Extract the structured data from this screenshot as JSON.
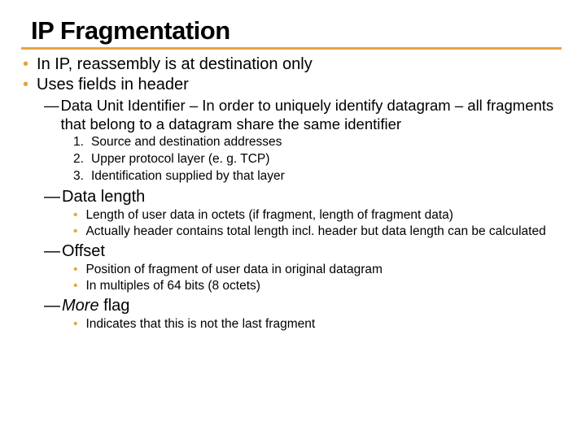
{
  "colors": {
    "accent": "#e8a33d",
    "text": "#000000",
    "bg": "#ffffff"
  },
  "title": "IP Fragmentation",
  "bullets": {
    "b1": "In IP, reassembly is at destination only",
    "b2": "Uses fields in header"
  },
  "sections": {
    "data_unit_id": {
      "label": "Data Unit Identifier – In order to uniquely identify datagram – all fragments that belong to a datagram share the same identifier",
      "items": {
        "n1": "Source and destination addresses",
        "n2": "Upper protocol layer (e. g. TCP)",
        "n3": "Identification supplied by that layer"
      }
    },
    "data_length": {
      "label": "Data length",
      "items": {
        "s1": "Length of user data in octets (if fragment, length of fragment data)",
        "s2": "Actually header contains total length incl. header but data length can be calculated"
      }
    },
    "offset": {
      "label": "Offset",
      "items": {
        "s1": "Position of fragment of user data in original datagram",
        "s2": "In multiples of 64 bits (8 octets)"
      }
    },
    "more_flag": {
      "label_italic": "More",
      "label_rest": " flag",
      "items": {
        "s1": "Indicates that this is not the last fragment"
      }
    }
  }
}
